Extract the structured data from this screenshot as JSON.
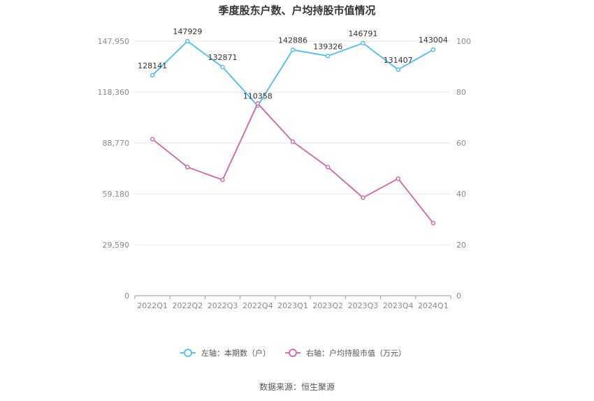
{
  "title": "季度股东户数、户均持股市值情况",
  "source": "数据来源：恒生聚源",
  "colors": {
    "left_series": "#5bc0eb",
    "right_series": "#d070b0",
    "grid": "#e6e6e6",
    "axis": "#999999"
  },
  "chart_data": {
    "type": "line",
    "categories": [
      "2022Q1",
      "2022Q2",
      "2022Q3",
      "2022Q4",
      "2023Q1",
      "2023Q2",
      "2023Q3",
      "2023Q4",
      "2024Q1"
    ],
    "left_axis": {
      "ticks": [
        0,
        29590,
        59180,
        88770,
        118360,
        147950
      ],
      "tick_labels": [
        "0",
        "29,590",
        "59,180",
        "88,770",
        "118,360",
        "147,950"
      ],
      "range": [
        0,
        147950
      ]
    },
    "right_axis": {
      "ticks": [
        0,
        20,
        40,
        60,
        80,
        100
      ],
      "tick_labels": [
        "0",
        "20",
        "40",
        "60",
        "80",
        "100"
      ],
      "range": [
        0,
        100
      ]
    },
    "series": [
      {
        "name": "左轴：本期数（户）",
        "axis": "left",
        "values": [
          128141,
          147929,
          132871,
          110358,
          142886,
          139326,
          146791,
          131407,
          143004
        ],
        "labels": [
          "128141",
          "147929",
          "132871",
          "110358",
          "142886",
          "139326",
          "146791",
          "131407",
          "143004"
        ]
      },
      {
        "name": "右轴：户均持股市值（万元）",
        "axis": "right",
        "values": [
          61.5,
          50.5,
          45.5,
          75.5,
          60.5,
          50.5,
          38.5,
          46,
          28.5
        ]
      }
    ],
    "legend_position": "bottom",
    "grid": true
  }
}
